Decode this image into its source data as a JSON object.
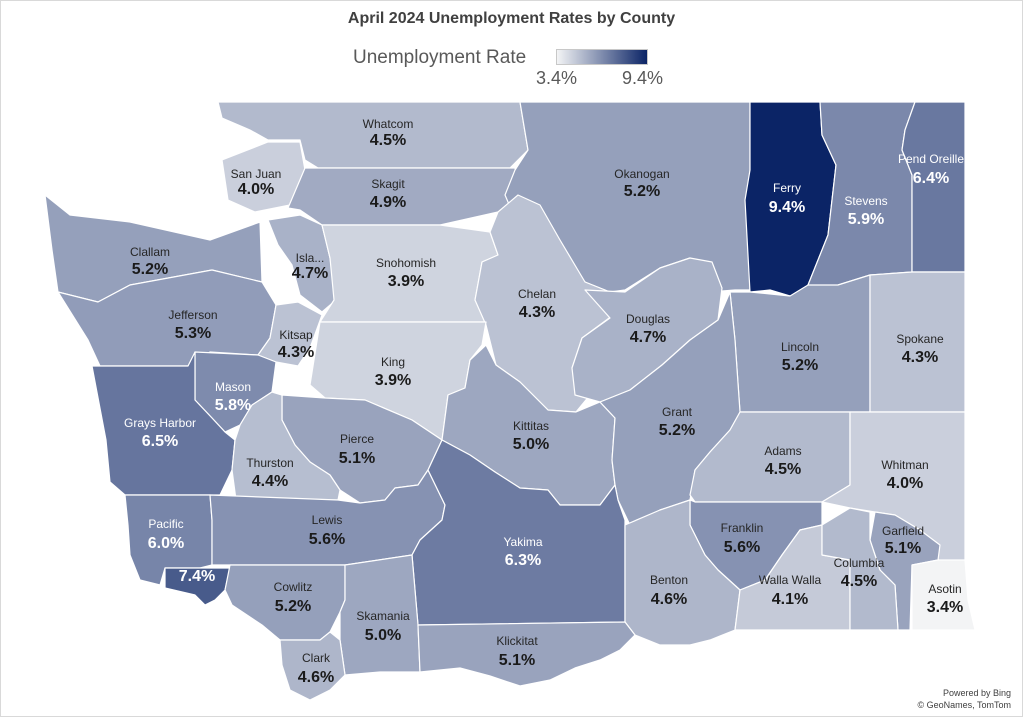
{
  "title": "April 2024 Unemployment Rates by County",
  "legend": {
    "title": "Unemployment Rate",
    "min_label": "3.4%",
    "max_label": "9.4%",
    "min_color": "#f3f4f5",
    "max_color": "#0b2466"
  },
  "attribution": {
    "line1": "Powered by Bing",
    "line2": "© GeoNames, TomTom"
  },
  "counties": [
    {
      "id": "whatcom",
      "name": "Whatcom",
      "value": "4.5%"
    },
    {
      "id": "san-juan",
      "name": "San Juan",
      "value": "4.0%"
    },
    {
      "id": "skagit",
      "name": "Skagit",
      "value": "4.9%"
    },
    {
      "id": "okanogan",
      "name": "Okanogan",
      "value": "5.2%"
    },
    {
      "id": "ferry",
      "name": "Ferry",
      "value": "9.4%"
    },
    {
      "id": "stevens",
      "name": "Stevens",
      "value": "5.9%"
    },
    {
      "id": "pend-oreille",
      "name": "Pend Oreille",
      "value": "6.4%"
    },
    {
      "id": "clallam",
      "name": "Clallam",
      "value": "5.2%"
    },
    {
      "id": "island",
      "name": "Isla...",
      "value": "4.7%"
    },
    {
      "id": "snohomish",
      "name": "Snohomish",
      "value": "3.9%"
    },
    {
      "id": "chelan",
      "name": "Chelan",
      "value": "4.3%"
    },
    {
      "id": "douglas",
      "name": "Douglas",
      "value": "4.7%"
    },
    {
      "id": "jefferson",
      "name": "Jefferson",
      "value": "5.3%"
    },
    {
      "id": "kitsap",
      "name": "Kitsap",
      "value": "4.3%"
    },
    {
      "id": "king",
      "name": "King",
      "value": "3.9%"
    },
    {
      "id": "lincoln",
      "name": "Lincoln",
      "value": "5.2%"
    },
    {
      "id": "spokane",
      "name": "Spokane",
      "value": "4.3%"
    },
    {
      "id": "mason",
      "name": "Mason",
      "value": "5.8%"
    },
    {
      "id": "grays-harbor",
      "name": "Grays Harbor",
      "value": "6.5%"
    },
    {
      "id": "kittitas",
      "name": "Kittitas",
      "value": "5.0%"
    },
    {
      "id": "grant",
      "name": "Grant",
      "value": "5.2%"
    },
    {
      "id": "pierce",
      "name": "Pierce",
      "value": "5.1%"
    },
    {
      "id": "thurston",
      "name": "Thurston",
      "value": "4.4%"
    },
    {
      "id": "adams",
      "name": "Adams",
      "value": "4.5%"
    },
    {
      "id": "whitman",
      "name": "Whitman",
      "value": "4.0%"
    },
    {
      "id": "pacific",
      "name": "Pacific",
      "value": "6.0%"
    },
    {
      "id": "lewis",
      "name": "Lewis",
      "value": "5.6%"
    },
    {
      "id": "yakima",
      "name": "Yakima",
      "value": "6.3%"
    },
    {
      "id": "franklin",
      "name": "Franklin",
      "value": "5.6%"
    },
    {
      "id": "garfield",
      "name": "Garfield",
      "value": "5.1%"
    },
    {
      "id": "wahkiakum",
      "name": "",
      "value": "7.4%"
    },
    {
      "id": "cowlitz",
      "name": "Cowlitz",
      "value": "5.2%"
    },
    {
      "id": "benton",
      "name": "Benton",
      "value": "4.6%"
    },
    {
      "id": "walla-walla",
      "name": "Walla Walla",
      "value": "4.1%"
    },
    {
      "id": "columbia",
      "name": "Columbia",
      "value": "4.5%"
    },
    {
      "id": "asotin",
      "name": "Asotin",
      "value": "3.4%"
    },
    {
      "id": "skamania",
      "name": "Skamania",
      "value": "5.0%"
    },
    {
      "id": "klickitat",
      "name": "Klickitat",
      "value": "5.1%"
    },
    {
      "id": "clark",
      "name": "Clark",
      "value": "4.6%"
    }
  ]
}
